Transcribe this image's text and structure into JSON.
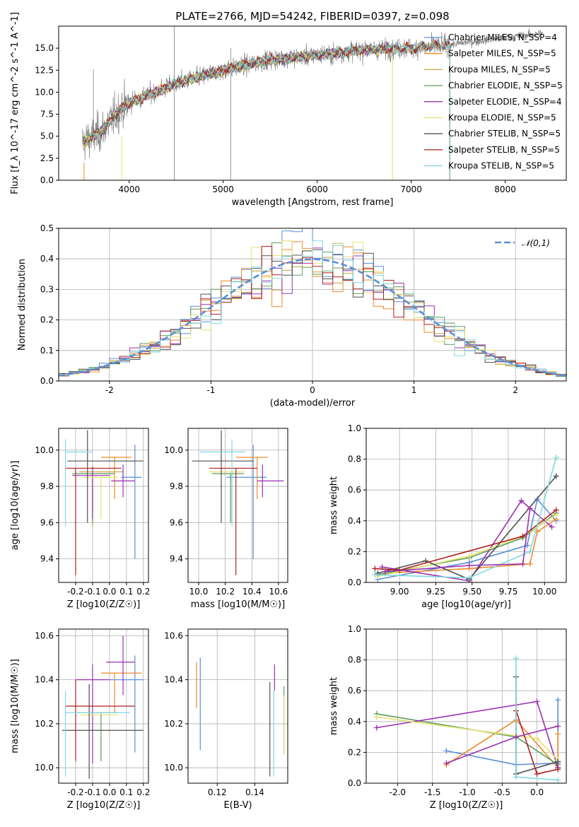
{
  "title": "PLATE=2766, MJD=54242, FIBERID=0397, z=0.098",
  "colors": {
    "Chabrier MILES": "#5b8fd8",
    "Salpeter MILES": "#f08a2c",
    "Kroupa MILES": "#c8a040",
    "Chabrier ELODIE": "#5a9e5a",
    "Salpeter ELODIE": "#9b30b0",
    "Kroupa ELODIE": "#e8e070",
    "Chabrier STELIB": "#505050",
    "Salpeter STELIB": "#b02020",
    "Kroupa STELIB": "#80d8e0",
    "normal": "#5b8fd8"
  },
  "chart_data": [
    {
      "id": "spectrum",
      "type": "line",
      "xlabel": "wavelength [Angstrom, rest frame]",
      "ylabel": "Flux [f_λ 10^-17 erg cm^-2 s^-1 A^-1]",
      "xlim": [
        3250,
        8650
      ],
      "ylim": [
        0,
        17.5
      ],
      "xticks": [
        4000,
        5000,
        6000,
        7000,
        8000
      ],
      "yticks": [
        0.0,
        2.5,
        5.0,
        7.5,
        10.0,
        12.5,
        15.0
      ],
      "grid": false,
      "legend_position": "right",
      "data_range": [
        3500,
        8400
      ],
      "series": [
        {
          "name": "Chabrier MILES, N_SSP=4",
          "color_key": "Chabrier MILES",
          "x_range": [
            3520,
            7410
          ]
        },
        {
          "name": "Salpeter MILES, N_SSP=5",
          "color_key": "Salpeter MILES",
          "x_range": [
            3520,
            7410
          ]
        },
        {
          "name": "Kroupa MILES, N_SSP=5",
          "color_key": "Kroupa MILES",
          "x_range": [
            3520,
            7410
          ]
        },
        {
          "name": "Chabrier ELODIE, N_SSP=5",
          "color_key": "Chabrier ELODIE",
          "x_range": [
            3520,
            6800
          ]
        },
        {
          "name": "Salpeter ELODIE, N_SSP=4",
          "color_key": "Salpeter ELODIE",
          "x_range": [
            3520,
            6800
          ]
        },
        {
          "name": "Kroupa ELODIE, N_SSP=5",
          "color_key": "Kroupa ELODIE",
          "x_range": [
            3520,
            6800
          ]
        },
        {
          "name": "Chabrier STELIB, N_SSP=5",
          "color_key": "Chabrier STELIB",
          "x_range": [
            3520,
            7410
          ]
        },
        {
          "name": "Salpeter STELIB, N_SSP=5",
          "color_key": "Salpeter STELIB",
          "x_range": [
            3520,
            7410
          ]
        },
        {
          "name": "Kroupa STELIB, N_SSP=5",
          "color_key": "Kroupa STELIB",
          "x_range": [
            3520,
            7410
          ]
        }
      ],
      "continuum": [
        [
          3500,
          4.3
        ],
        [
          3700,
          5.5
        ],
        [
          3900,
          8.0
        ],
        [
          4000,
          8.8
        ],
        [
          4500,
          11.0
        ],
        [
          5000,
          12.5
        ],
        [
          5500,
          13.7
        ],
        [
          6000,
          14.2
        ],
        [
          6500,
          14.8
        ],
        [
          7000,
          15.0
        ],
        [
          7400,
          15.4
        ],
        [
          8400,
          16.7
        ]
      ]
    },
    {
      "id": "residuals",
      "type": "histogram",
      "xlabel": "(data-model)/error",
      "ylabel": "Normed distribution",
      "xlim": [
        -2.5,
        2.5
      ],
      "ylim": [
        0,
        0.5
      ],
      "xticks": [
        -2,
        -1,
        0,
        1,
        2
      ],
      "yticks": [
        0.0,
        0.1,
        0.2,
        0.3,
        0.4,
        0.5
      ],
      "grid": true,
      "legend": [
        "𝒩(0,1)"
      ],
      "legend_position": "top-right",
      "bin_width": 0.1
    },
    {
      "id": "age_vs_Z",
      "type": "errorbar",
      "xlabel": "Z [log10(Z/Z☉)]",
      "ylabel": "age [log10(age/yr)]",
      "xlim": [
        -0.3,
        0.23
      ],
      "ylim": [
        9.27,
        10.12
      ],
      "xticks": [
        -0.2,
        -0.1,
        0.0,
        0.1,
        0.2
      ],
      "yticks": [
        9.4,
        9.6,
        9.8,
        10.0
      ],
      "grid": true,
      "points": [
        {
          "k": "Chabrier MILES",
          "x": 0.15,
          "y": 9.85,
          "xerr": [
            0.08,
            0.04
          ],
          "yerr": [
            0.45,
            0.18
          ]
        },
        {
          "k": "Salpeter MILES",
          "x": 0.03,
          "y": 9.96,
          "xerr": [
            0.08,
            0.1
          ],
          "yerr": [
            0.23,
            0.0
          ]
        },
        {
          "k": "Kroupa MILES",
          "x": -0.1,
          "y": 9.88,
          "xerr": [
            0.08,
            0.18
          ],
          "yerr": [
            0.3,
            0.0
          ]
        },
        {
          "k": "Chabrier ELODIE",
          "x": -0.1,
          "y": 9.87,
          "xerr": [
            0.12,
            0.13
          ],
          "yerr": [
            0.27,
            0.0
          ]
        },
        {
          "k": "Salpeter ELODIE",
          "x": -0.1,
          "y": 9.86,
          "xerr": [
            0.12,
            0.1
          ],
          "yerr": [
            0.24,
            0.05
          ]
        },
        {
          "k": "Kroupa ELODIE",
          "x": -0.05,
          "y": 9.85,
          "xerr": [
            0.1,
            0.1
          ],
          "yerr": [
            0.23,
            0.0
          ]
        },
        {
          "k": "Chabrier STELIB",
          "x": -0.13,
          "y": 9.94,
          "xerr": [
            0.12,
            0.33
          ],
          "yerr": [
            0.34,
            0.17
          ]
        },
        {
          "k": "Salpeter STELIB",
          "x": -0.2,
          "y": 9.9,
          "xerr": [
            0.06,
            0.27
          ],
          "yerr": [
            0.59,
            0.0
          ]
        },
        {
          "k": "Kroupa STELIB",
          "x": -0.26,
          "y": 9.99,
          "xerr": [
            0.0,
            0.16
          ],
          "yerr": [
            0.41,
            0.07
          ]
        },
        {
          "k": "Salpeter ELODIE",
          "x": 0.08,
          "y": 9.83,
          "xerr": [
            0.07,
            0.07
          ],
          "yerr": [
            0.09,
            0.09
          ]
        }
      ]
    },
    {
      "id": "age_vs_mass",
      "type": "errorbar",
      "xlabel": "mass [log10(M/M☉)]",
      "ylabel": "",
      "xlim": [
        9.92,
        10.67
      ],
      "ylim": [
        9.27,
        10.12
      ],
      "xticks": [
        10.0,
        10.2,
        10.4,
        10.6
      ],
      "yticks": [
        9.4,
        9.6,
        9.8,
        10.0
      ],
      "grid": true,
      "points": [
        {
          "k": "Chabrier MILES",
          "x": 10.41,
          "y": 9.85,
          "xerr": [
            0.2,
            0.1
          ],
          "yerr": [
            0.45,
            0.18
          ]
        },
        {
          "k": "Salpeter MILES",
          "x": 10.44,
          "y": 9.96,
          "xerr": [
            0.16,
            0.08
          ],
          "yerr": [
            0.23,
            0.0
          ]
        },
        {
          "k": "Chabrier ELODIE",
          "x": 10.24,
          "y": 9.87,
          "xerr": [
            0.14,
            0.1
          ],
          "yerr": [
            0.27,
            0.0
          ]
        },
        {
          "k": "Kroupa ELODIE",
          "x": 10.25,
          "y": 9.88,
          "xerr": [
            0.17,
            0.1
          ],
          "yerr": [
            0.26,
            0.0
          ]
        },
        {
          "k": "Chabrier STELIB",
          "x": 10.17,
          "y": 9.94,
          "xerr": [
            0.22,
            0.24
          ],
          "yerr": [
            0.34,
            0.17
          ]
        },
        {
          "k": "Salpeter STELIB",
          "x": 10.28,
          "y": 9.9,
          "xerr": [
            0.2,
            0.16
          ],
          "yerr": [
            0.59,
            0.0
          ]
        },
        {
          "k": "Kroupa STELIB",
          "x": 10.25,
          "y": 9.99,
          "xerr": [
            0.24,
            0.1
          ],
          "yerr": [
            0.41,
            0.07
          ]
        },
        {
          "k": "Salpeter ELODIE",
          "x": 10.48,
          "y": 9.83,
          "xerr": [
            0.04,
            0.16
          ],
          "yerr": [
            0.09,
            0.09
          ]
        }
      ]
    },
    {
      "id": "weight_vs_age",
      "type": "line",
      "xlabel": "age [log10(age/yr)]",
      "ylabel": "mass weight",
      "xlim": [
        8.77,
        10.15
      ],
      "ylim": [
        0,
        1
      ],
      "xticks": [
        9.0,
        9.25,
        9.5,
        9.75,
        10.0
      ],
      "yticks": [
        0.0,
        0.2,
        0.4,
        0.6,
        0.8,
        1.0
      ],
      "grid": true,
      "series": [
        {
          "k": "Chabrier MILES",
          "x": [
            8.85,
            9.48,
            9.88,
            9.95,
            10.08
          ],
          "y": [
            0.02,
            0.13,
            0.24,
            0.54,
            0.4
          ]
        },
        {
          "k": "Salpeter MILES",
          "x": [
            8.9,
            9.48,
            9.9,
            9.95,
            10.08
          ],
          "y": [
            0.06,
            0.09,
            0.12,
            0.33,
            0.41
          ]
        },
        {
          "k": "Chabrier ELODIE",
          "x": [
            8.85,
            9.48,
            9.85,
            10.08
          ],
          "y": [
            0.05,
            0.16,
            0.29,
            0.45
          ]
        },
        {
          "k": "Salpeter ELODIE",
          "x": [
            8.88,
            9.48,
            9.84,
            10.05
          ],
          "y": [
            0.1,
            0.01,
            0.53,
            0.36
          ]
        },
        {
          "k": "Kroupa ELODIE",
          "x": [
            8.85,
            9.48,
            9.85,
            10.08
          ],
          "y": [
            0.04,
            0.17,
            0.3,
            0.44
          ]
        },
        {
          "k": "Chabrier STELIB",
          "x": [
            8.85,
            9.18,
            9.48,
            10.08
          ],
          "y": [
            0.06,
            0.14,
            0.02,
            0.69
          ]
        },
        {
          "k": "Salpeter STELIB",
          "x": [
            8.83,
            9.0,
            9.85,
            10.08
          ],
          "y": [
            0.09,
            0.08,
            0.3,
            0.47
          ]
        },
        {
          "k": "Kroupa STELIB",
          "x": [
            8.83,
            9.48,
            9.9,
            10.08
          ],
          "y": [
            0.05,
            0.03,
            0.2,
            0.81
          ]
        },
        {
          "k": "Salpeter ELODIE",
          "x": [
            8.9,
            9.48,
            9.85,
            9.9
          ],
          "y": [
            0.07,
            0.11,
            0.12,
            0.48
          ]
        }
      ]
    },
    {
      "id": "mass_vs_Z",
      "type": "errorbar",
      "xlabel": "Z [log10(Z/Z☉)]",
      "ylabel": "mass [log10(M/M☉)]",
      "xlim": [
        -0.3,
        0.23
      ],
      "ylim": [
        9.93,
        10.63
      ],
      "xticks": [
        -0.2,
        -0.1,
        0.0,
        0.1,
        0.2
      ],
      "yticks": [
        10.0,
        10.2,
        10.4,
        10.6
      ],
      "grid": true,
      "points": [
        {
          "k": "Chabrier MILES",
          "x": 0.15,
          "y": 10.4,
          "xerr": [
            0.15,
            0.05
          ],
          "yerr": [
            0.33,
            0.11
          ]
        },
        {
          "k": "Salpeter MILES",
          "x": 0.03,
          "y": 10.43,
          "xerr": [
            0.08,
            0.16
          ],
          "yerr": [
            0.18,
            0.0
          ]
        },
        {
          "k": "Chabrier ELODIE",
          "x": -0.05,
          "y": 10.25,
          "xerr": [
            0.14,
            0.1
          ],
          "yerr": [
            0.22,
            0.0
          ]
        },
        {
          "k": "Salpeter ELODIE",
          "x": -0.1,
          "y": 10.4,
          "xerr": [
            0.1,
            0.1
          ],
          "yerr": [
            0.38,
            0.07
          ]
        },
        {
          "k": "Kroupa ELODIE",
          "x": -0.05,
          "y": 10.24,
          "xerr": [
            0.12,
            0.1
          ],
          "yerr": [
            0.0,
            0.0
          ]
        },
        {
          "k": "Chabrier STELIB",
          "x": -0.12,
          "y": 10.17,
          "xerr": [
            0.16,
            0.32
          ],
          "yerr": [
            0.22,
            0.21
          ]
        },
        {
          "k": "Salpeter STELIB",
          "x": -0.2,
          "y": 10.28,
          "xerr": [
            0.06,
            0.35
          ],
          "yerr": [
            0.25,
            0.12
          ]
        },
        {
          "k": "Kroupa STELIB",
          "x": -0.26,
          "y": 10.25,
          "xerr": [
            0.0,
            0.38
          ],
          "yerr": [
            0.29,
            0.1
          ]
        },
        {
          "k": "Salpeter ELODIE",
          "x": 0.08,
          "y": 10.48,
          "xerr": [
            0.1,
            0.07
          ],
          "yerr": [
            0.15,
            0.12
          ]
        },
        {
          "k": "Salpeter MILES",
          "x": 0.03,
          "y": 10.43,
          "xerr": [
            0.0,
            0.0
          ],
          "yerr": [
            0.0,
            0.0
          ]
        }
      ]
    },
    {
      "id": "mass_vs_ebv",
      "type": "errorbar",
      "xlabel": "E(B-V)",
      "ylabel": "",
      "xlim": [
        0.1045,
        0.1575
      ],
      "ylim": [
        9.93,
        10.63
      ],
      "xticks": [
        0.12,
        0.14
      ],
      "yticks": [
        10.0,
        10.2,
        10.4,
        10.6
      ],
      "grid": true,
      "points": [
        {
          "k": "Salpeter ELODIE",
          "x": 0.107,
          "y": 10.6,
          "xerr": [
            0,
            0
          ],
          "yerr": [
            0.0,
            0.0
          ]
        },
        {
          "k": "Salpeter MILES",
          "x": 0.109,
          "y": 10.43,
          "xerr": [
            0,
            0
          ],
          "yerr": [
            0.16,
            0.05
          ]
        },
        {
          "k": "Chabrier MILES",
          "x": 0.111,
          "y": 10.4,
          "xerr": [
            0,
            0
          ],
          "yerr": [
            0.32,
            0.1
          ]
        },
        {
          "k": "Chabrier STELIB",
          "x": 0.148,
          "y": 10.17,
          "xerr": [
            0,
            0
          ],
          "yerr": [
            0.21,
            0.22
          ]
        },
        {
          "k": "Kroupa STELIB",
          "x": 0.15,
          "y": 10.25,
          "xerr": [
            0,
            0
          ],
          "yerr": [
            0.29,
            0.1
          ]
        },
        {
          "k": "Salpeter ELODIE",
          "x": 0.1505,
          "y": 10.4,
          "xerr": [
            0,
            0
          ],
          "yerr": [
            0.05,
            0.07
          ]
        },
        {
          "k": "Chabrier ELODIE",
          "x": 0.1555,
          "y": 10.25,
          "xerr": [
            0,
            0
          ],
          "yerr": [
            0.19,
            0.12
          ]
        },
        {
          "k": "Kroupa ELODIE",
          "x": 0.1555,
          "y": 10.24,
          "xerr": [
            0,
            0
          ],
          "yerr": [
            0.18,
            0.09
          ]
        }
      ]
    },
    {
      "id": "weight_vs_Z",
      "type": "line",
      "xlabel": "Z [log10(Z/Z☉)]",
      "ylabel": "mass weight",
      "xlim": [
        -2.45,
        0.42
      ],
      "ylim": [
        0,
        1
      ],
      "xticks": [
        -2.0,
        -1.5,
        -1.0,
        -0.5,
        0.0
      ],
      "yticks": [
        0.0,
        0.2,
        0.4,
        0.6,
        0.8,
        1.0
      ],
      "grid": true,
      "series": [
        {
          "k": "Chabrier MILES",
          "x": [
            -1.3,
            -0.3,
            0.3,
            0.3
          ],
          "y": [
            0.21,
            0.12,
            0.13,
            0.54
          ]
        },
        {
          "k": "Salpeter MILES",
          "x": [
            -1.3,
            -0.3,
            0.3,
            0.3
          ],
          "y": [
            0.12,
            0.41,
            0.1,
            0.32
          ]
        },
        {
          "k": "Chabrier ELODIE",
          "x": [
            -2.3,
            -0.3,
            0.3
          ],
          "y": [
            0.45,
            0.3,
            0.12
          ]
        },
        {
          "k": "Salpeter ELODIE",
          "x": [
            -2.3,
            0.0,
            0.3
          ],
          "y": [
            0.36,
            0.53,
            0.1
          ]
        },
        {
          "k": "Kroupa ELODIE",
          "x": [
            -2.3,
            0.0,
            0.3
          ],
          "y": [
            0.43,
            0.29,
            0.15
          ]
        },
        {
          "k": "Chabrier STELIB",
          "x": [
            -0.3,
            -0.3,
            0.3
          ],
          "y": [
            0.69,
            0.06,
            0.14
          ]
        },
        {
          "k": "Salpeter STELIB",
          "x": [
            -0.3,
            0.0,
            0.3
          ],
          "y": [
            0.47,
            0.06,
            0.09
          ]
        },
        {
          "k": "Kroupa STELIB",
          "x": [
            -0.3,
            -0.3,
            0.3
          ],
          "y": [
            0.81,
            0.04,
            0.02
          ]
        },
        {
          "k": "Salpeter ELODIE",
          "x": [
            -1.3,
            -0.3,
            0.3
          ],
          "y": [
            0.13,
            0.3,
            0.37
          ]
        }
      ]
    }
  ]
}
